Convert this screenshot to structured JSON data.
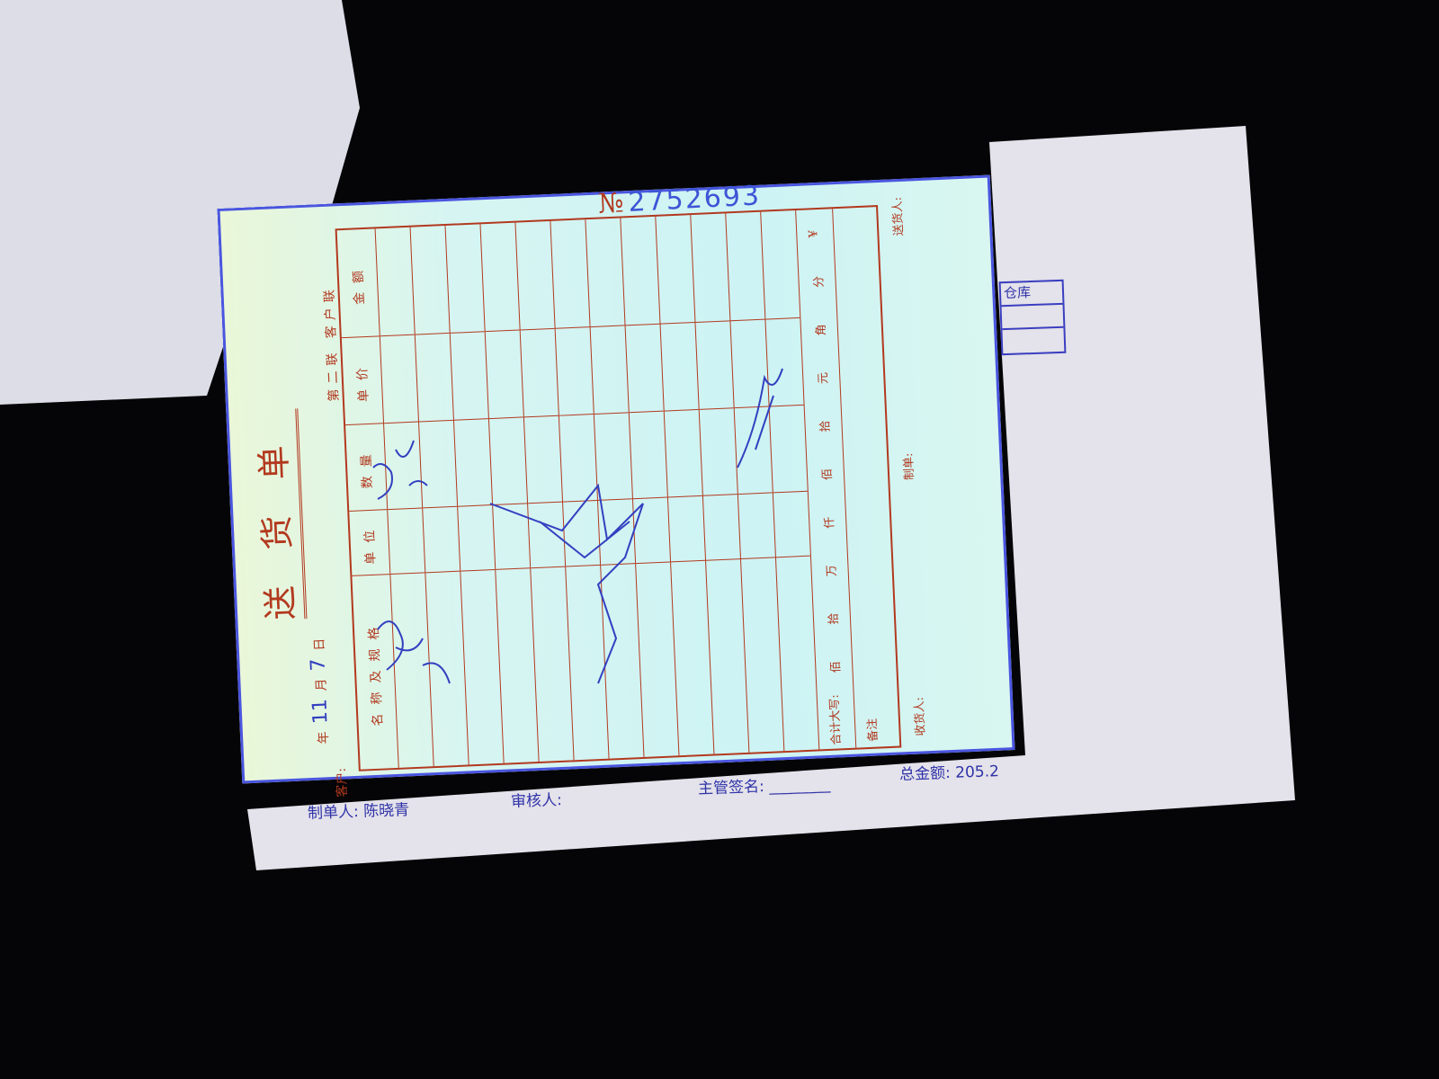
{
  "form": {
    "title": "送货单",
    "copy_label": "第二联 客户联",
    "serial_label": "№",
    "serial_number": "2752693",
    "date": {
      "year_label": "年",
      "month_value": "11",
      "month_label": "月",
      "day_value": "7",
      "day_label": "日"
    },
    "customer_label": "客户:",
    "columns": [
      "名称及规格",
      "单位",
      "数量",
      "单价",
      "金额"
    ],
    "total_label": "合计大写:",
    "total_units": [
      "佰",
      "拾",
      "万",
      "仟",
      "佰",
      "拾",
      "元",
      "角",
      "分",
      "¥"
    ],
    "remark_label": "备注",
    "signatures": {
      "receiver": "收货人:",
      "preparer": "制单:",
      "deliverer": "送货人:"
    }
  },
  "backing": {
    "prepared_by_label": "制单人:",
    "prepared_by_value": "陈晓青",
    "reviewer_label": "审核人:",
    "supervisor_label": "主管签名:",
    "total_amount_label": "总金额:",
    "total_amount_value": "205.2",
    "warehouse_label": "仓库"
  },
  "colors": {
    "form_ink": "#b2391f",
    "stamp_ink": "#2f33a8",
    "handwriting": "#3340c0"
  }
}
